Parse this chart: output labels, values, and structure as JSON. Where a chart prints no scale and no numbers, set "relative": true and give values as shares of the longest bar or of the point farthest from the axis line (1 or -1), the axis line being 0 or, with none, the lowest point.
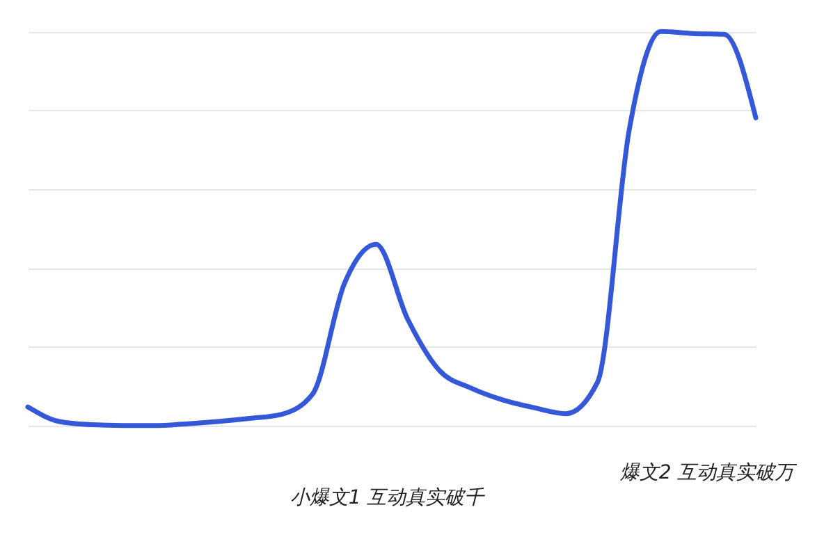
{
  "chart_data": {
    "type": "line",
    "relative": true,
    "grid": "y",
    "line_style": "solid",
    "categories": [
      null,
      null,
      null,
      null,
      null,
      null,
      null,
      null,
      null,
      null,
      null,
      null,
      null,
      null,
      null,
      null,
      null,
      null,
      null,
      null,
      null,
      null,
      null,
      null
    ],
    "series": [
      {
        "color": "#3558d8",
        "values": [
          0.047,
          0.01,
          0.002,
          0,
          0,
          0.004,
          0.01,
          0.018,
          0.028,
          0.08,
          0.36,
          0.46,
          0.27,
          0.14,
          0.095,
          0.065,
          0.045,
          0.03,
          0.11,
          0.75,
          1,
          0.995,
          0.993,
          0.781
        ]
      }
    ],
    "annotations": [
      "小爆文1 互动真实破千",
      "爆文2 互动真实破万"
    ]
  }
}
